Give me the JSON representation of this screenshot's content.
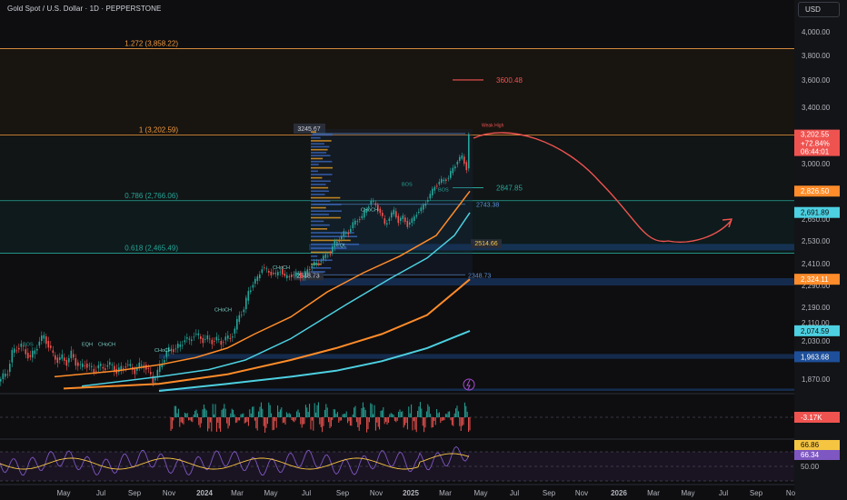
{
  "header": {
    "title": "Gold Spot / U.S. Dollar · 1D · PEPPERSTONE",
    "currency": "USD"
  },
  "colors": {
    "background": "#0e0e10",
    "fib": "#ef9a3f",
    "teal": "#26a69a",
    "red": "#ef5350",
    "orange_ma": "#ff8c2a",
    "cyan_ma": "#4dd0e1",
    "blue_zone": "#1e4f9a",
    "rsi": "#7e57c2",
    "rsi_ma": "#f5c542"
  },
  "chart_data": {
    "type": "line",
    "symbol": "XAUUSD",
    "timeframe": "1D",
    "x_ticks": [
      "May",
      "Jul",
      "Sep",
      "Nov",
      "2024",
      "Mar",
      "May",
      "Jul",
      "Sep",
      "Nov",
      "2025",
      "Mar",
      "May",
      "Jul",
      "Sep",
      "Nov",
      "2026",
      "Mar",
      "May",
      "Jul",
      "Sep",
      "No"
    ],
    "y_ticks": [
      "4,000.00",
      "3,800.00",
      "3,600.00",
      "3,400.00",
      "3,000.00",
      "2,650.00",
      "2,530.00",
      "2,410.00",
      "2,290.00",
      "2,190.00",
      "2,110.00",
      "2,030.00",
      "1,870.00"
    ],
    "price_axis_labels": [
      {
        "text": "3,202.55",
        "sub1": "+72.84%",
        "sub2": "06:44:01",
        "color": "#ef5350"
      },
      {
        "text": "2,826.50",
        "color": "#ff8c2a"
      },
      {
        "text": "2,691.89",
        "color": "#4dd0e1"
      },
      {
        "text": "2,324.11",
        "color": "#ff8c2a"
      },
      {
        "text": "2,074.59",
        "color": "#4dd0e1"
      },
      {
        "text": "1,963.68",
        "color": "#1e4f9a"
      }
    ],
    "fib_levels": [
      {
        "label": "1.272 (3,858.22)",
        "value": 3858.22
      },
      {
        "label": "1 (3,202.59)",
        "value": 3202.59
      },
      {
        "label": "0.786 (2,766.06)",
        "value": 2766.06
      },
      {
        "label": "0.618 (2,465.49)",
        "value": 2465.49
      }
    ],
    "level_labels": [
      {
        "text": "3600.48",
        "value": 3600.48
      },
      {
        "text": "2847.85",
        "value": 2847.85
      },
      {
        "text": "3245.67",
        "value": 3245.67
      },
      {
        "text": "2743.38",
        "value": 2743.38
      },
      {
        "text": "2514.66",
        "value": 2514.66
      },
      {
        "text": "2348.73",
        "value": 2348.73
      },
      {
        "text": "2348.73",
        "value": 2348.73
      }
    ],
    "annotations": [
      "BOS",
      "CHoCH",
      "EQH",
      "EQL",
      "Weak High"
    ],
    "projection": "hand-drawn red path: rise to ~3200 then decline to ~2530, then rebound with arrow",
    "price_path": [
      [
        0,
        1860
      ],
      [
        5,
        1880
      ],
      [
        10,
        1900
      ],
      [
        15,
        1980
      ],
      [
        20,
        2000
      ],
      [
        25,
        2010
      ],
      [
        30,
        1980
      ],
      [
        35,
        1960
      ],
      [
        40,
        1990
      ],
      [
        45,
        2030
      ],
      [
        50,
        2050
      ],
      [
        55,
        2010
      ],
      [
        60,
        1970
      ],
      [
        65,
        1950
      ],
      [
        70,
        1960
      ],
      [
        75,
        1940
      ],
      [
        80,
        1975
      ],
      [
        85,
        1940
      ],
      [
        90,
        1920
      ],
      [
        95,
        1935
      ],
      [
        100,
        1920
      ],
      [
        105,
        1905
      ],
      [
        110,
        1925
      ],
      [
        115,
        1915
      ],
      [
        120,
        1930
      ],
      [
        125,
        1925
      ],
      [
        130,
        1900
      ],
      [
        135,
        1915
      ],
      [
        140,
        1930
      ],
      [
        145,
        1920
      ],
      [
        150,
        1905
      ],
      [
        155,
        1925
      ],
      [
        160,
        1930
      ],
      [
        165,
        1900
      ],
      [
        170,
        1865
      ],
      [
        175,
        1900
      ],
      [
        180,
        1940
      ],
      [
        185,
        1985
      ],
      [
        190,
        1995
      ],
      [
        195,
        2000
      ],
      [
        200,
        2010
      ],
      [
        205,
        2040
      ],
      [
        210,
        2030
      ],
      [
        215,
        2060
      ],
      [
        220,
        2050
      ],
      [
        225,
        2035
      ],
      [
        230,
        2040
      ],
      [
        235,
        2030
      ],
      [
        240,
        2035
      ],
      [
        245,
        2025
      ],
      [
        250,
        2040
      ],
      [
        255,
        2045
      ],
      [
        260,
        2080
      ],
      [
        265,
        2150
      ],
      [
        270,
        2180
      ],
      [
        275,
        2260
      ],
      [
        280,
        2300
      ],
      [
        285,
        2330
      ],
      [
        290,
        2390
      ],
      [
        295,
        2370
      ],
      [
        300,
        2360
      ],
      [
        305,
        2345
      ],
      [
        310,
        2380
      ],
      [
        315,
        2330
      ],
      [
        320,
        2350
      ],
      [
        325,
        2340
      ],
      [
        330,
        2360
      ],
      [
        335,
        2330
      ],
      [
        340,
        2380
      ],
      [
        345,
        2400
      ],
      [
        350,
        2410
      ],
      [
        355,
        2430
      ],
      [
        360,
        2450
      ],
      [
        365,
        2470
      ],
      [
        370,
        2520
      ],
      [
        375,
        2540
      ],
      [
        380,
        2570
      ],
      [
        385,
        2580
      ],
      [
        390,
        2620
      ],
      [
        395,
        2650
      ],
      [
        400,
        2660
      ],
      [
        405,
        2720
      ],
      [
        410,
        2760
      ],
      [
        415,
        2740
      ],
      [
        420,
        2690
      ],
      [
        425,
        2620
      ],
      [
        430,
        2660
      ],
      [
        435,
        2700
      ],
      [
        440,
        2640
      ],
      [
        445,
        2660
      ],
      [
        450,
        2620
      ],
      [
        455,
        2640
      ],
      [
        460,
        2690
      ],
      [
        465,
        2710
      ],
      [
        470,
        2760
      ],
      [
        475,
        2800
      ],
      [
        480,
        2860
      ],
      [
        485,
        2880
      ],
      [
        490,
        2900
      ],
      [
        495,
        2910
      ],
      [
        500,
        2970
      ],
      [
        505,
        3020
      ],
      [
        510,
        3050
      ],
      [
        515,
        2970
      ],
      [
        517,
        3202
      ]
    ],
    "moving_averages": [
      {
        "color": "#ff8c2a",
        "path": [
          [
            60,
            1880
          ],
          [
            130,
            1905
          ],
          [
            175,
            1930
          ],
          [
            215,
            1960
          ],
          [
            250,
            2000
          ],
          [
            280,
            2060
          ],
          [
            320,
            2140
          ],
          [
            360,
            2260
          ],
          [
            400,
            2360
          ],
          [
            440,
            2450
          ],
          [
            480,
            2560
          ],
          [
            517,
            2826
          ]
        ]
      },
      {
        "color": "#4dd0e1",
        "path": [
          [
            90,
            1840
          ],
          [
            175,
            1880
          ],
          [
            230,
            1910
          ],
          [
            270,
            1950
          ],
          [
            320,
            2040
          ],
          [
            380,
            2200
          ],
          [
            430,
            2330
          ],
          [
            470,
            2440
          ],
          [
            500,
            2560
          ],
          [
            517,
            2691
          ]
        ]
      },
      {
        "color": "#ff8c2a",
        "path": [
          [
            70,
            1830
          ],
          [
            175,
            1850
          ],
          [
            250,
            1890
          ],
          [
            320,
            1950
          ],
          [
            370,
            2000
          ],
          [
            420,
            2060
          ],
          [
            470,
            2150
          ],
          [
            517,
            2324
          ]
        ]
      },
      {
        "color": "#4dd0e1",
        "path": [
          [
            175,
            1820
          ],
          [
            250,
            1850
          ],
          [
            320,
            1880
          ],
          [
            370,
            1905
          ],
          [
            420,
            1945
          ],
          [
            470,
            2000
          ],
          [
            517,
            2074
          ]
        ]
      }
    ],
    "volume_panel": {
      "label": "-3.17K"
    },
    "rsi_panel": {
      "value1": "66.86",
      "value2": "66.34",
      "level": "50.00"
    }
  }
}
